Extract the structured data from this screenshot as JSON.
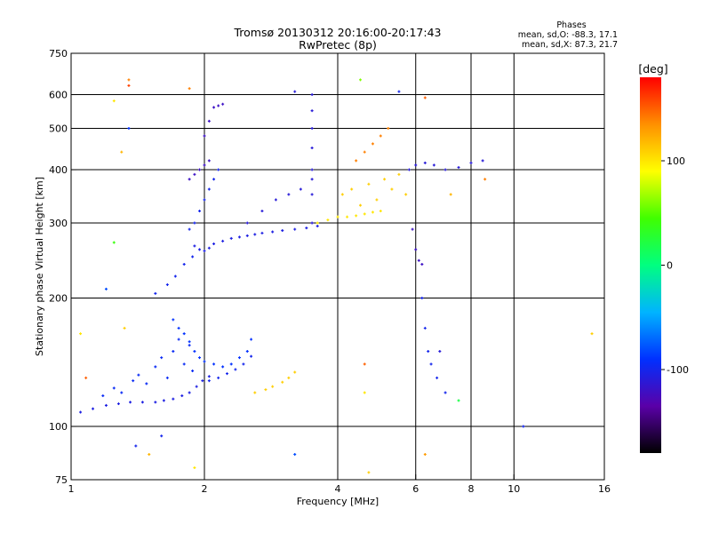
{
  "chart_data": {
    "type": "scatter",
    "title": "Tromsø 20130312 20:16:00-20:17:43",
    "subtitle": "RwPretec (8p)",
    "xlabel": "Frequency [MHz]",
    "ylabel": "Stationary phase Virtual Height [km]",
    "x_scale": "log",
    "y_scale": "log",
    "xlim": [
      1,
      16
    ],
    "ylim": [
      75,
      750
    ],
    "x_ticks": [
      1,
      2,
      4,
      6,
      8,
      10,
      16
    ],
    "y_ticks": [
      75,
      100,
      200,
      300,
      400,
      500,
      600,
      750
    ],
    "grid_x": [
      2,
      4,
      6,
      8,
      10
    ],
    "grid_y": [
      100,
      200,
      300,
      400,
      500,
      600
    ],
    "colorbar": {
      "label": "[deg]",
      "range": [
        -180,
        180
      ],
      "ticks": [
        100,
        0,
        -100
      ],
      "colors": [
        "#000000",
        "#5a00a8",
        "#0030ff",
        "#00b4ff",
        "#00ff80",
        "#40ff00",
        "#ffff00",
        "#ff9000",
        "#ff0000"
      ]
    },
    "phase_stats": {
      "header": "Phases",
      "line1": "mean, sd,O: -88.3, 17.1",
      "line2": "mean, sd,X:  87.3, 21.7"
    },
    "series": [
      {
        "x": [
          1.05,
          1.12,
          1.2,
          1.28,
          1.36,
          1.45,
          1.55,
          1.62,
          1.7,
          1.78,
          1.85,
          1.92,
          1.98,
          2.05
        ],
        "y": [
          108,
          110,
          112,
          113,
          114,
          114,
          114,
          115,
          116,
          118,
          120,
          124,
          128,
          131
        ],
        "phase": -105
      },
      {
        "x": [
          1.18,
          1.25,
          1.3,
          1.38,
          1.42,
          1.48,
          1.55,
          1.6,
          1.65,
          1.7,
          1.75,
          1.8,
          1.85,
          1.88
        ],
        "y": [
          118,
          123,
          120,
          128,
          132,
          126,
          138,
          145,
          130,
          150,
          160,
          140,
          155,
          135
        ],
        "phase": -95
      },
      {
        "x": [
          1.7,
          1.75,
          1.8,
          1.85,
          1.9,
          1.95,
          2.0,
          2.1,
          2.2,
          2.3,
          2.4,
          2.5,
          2.55
        ],
        "y": [
          178,
          170,
          165,
          158,
          150,
          145,
          142,
          140,
          138,
          140,
          145,
          150,
          160
        ],
        "phase": -90
      },
      {
        "x": [
          2.05,
          2.15,
          2.25,
          2.35,
          2.45,
          2.55
        ],
        "y": [
          128,
          130,
          133,
          136,
          140,
          146
        ],
        "phase": -100
      },
      {
        "x": [
          2.6,
          2.75,
          2.85,
          3.0,
          3.1,
          3.2
        ],
        "y": [
          120,
          122,
          124,
          127,
          130,
          134
        ],
        "phase": 110
      },
      {
        "x": [
          1.55,
          1.65,
          1.72,
          1.8,
          1.88
        ],
        "y": [
          205,
          215,
          225,
          240,
          250
        ],
        "phase": -100
      },
      {
        "x": [
          1.9,
          1.95,
          2.0,
          2.05,
          2.1,
          2.2,
          2.3,
          2.4,
          2.5,
          2.6,
          2.7,
          2.85,
          3.0,
          3.2,
          3.4,
          3.6
        ],
        "y": [
          265,
          260,
          258,
          262,
          268,
          272,
          276,
          278,
          280,
          282,
          284,
          286,
          288,
          290,
          292,
          295
        ],
        "phase": -105
      },
      {
        "x": [
          1.85,
          1.9,
          1.95,
          2.0,
          2.05,
          2.1,
          2.15
        ],
        "y": [
          290,
          300,
          320,
          340,
          360,
          380,
          400
        ],
        "phase": -100
      },
      {
        "x": [
          1.85,
          1.9,
          1.95,
          2.0,
          2.05
        ],
        "y": [
          380,
          390,
          400,
          410,
          420
        ],
        "phase": -120
      },
      {
        "x": [
          2.0,
          2.05,
          2.1,
          2.15,
          2.2
        ],
        "y": [
          480,
          520,
          560,
          565,
          570
        ],
        "phase": -120
      },
      {
        "x": [
          2.5,
          2.7,
          2.9,
          3.1,
          3.3,
          3.5
        ],
        "y": [
          300,
          320,
          340,
          350,
          360,
          380
        ],
        "phase": -110
      },
      {
        "x": [
          3.5,
          3.5,
          3.5,
          3.5,
          3.5,
          3.5,
          3.5
        ],
        "y": [
          300,
          350,
          400,
          450,
          500,
          550,
          600
        ],
        "phase": -110
      },
      {
        "x": [
          3.6,
          3.8,
          4.0,
          4.2,
          4.4,
          4.6,
          4.8,
          5.0
        ],
        "y": [
          300,
          305,
          310,
          310,
          312,
          315,
          318,
          320
        ],
        "phase": 100
      },
      {
        "x": [
          4.1,
          4.3,
          4.5,
          4.7,
          4.9,
          5.1,
          5.3,
          5.5,
          5.7
        ],
        "y": [
          350,
          360,
          330,
          370,
          340,
          380,
          360,
          390,
          350
        ],
        "phase": 110
      },
      {
        "x": [
          4.4,
          4.6,
          4.8,
          5.0,
          5.2
        ],
        "y": [
          420,
          440,
          460,
          480,
          500
        ],
        "phase": 140
      },
      {
        "x": [
          5.8,
          6.0,
          6.3,
          6.6,
          7.0,
          7.5,
          8.0,
          8.5
        ],
        "y": [
          400,
          410,
          415,
          410,
          400,
          405,
          415,
          420
        ],
        "phase": -110
      },
      {
        "x": [
          5.9,
          6.0,
          6.1,
          6.2
        ],
        "y": [
          290,
          260,
          245,
          240
        ],
        "phase": -120
      },
      {
        "x": [
          6.2,
          6.3,
          6.4,
          6.5,
          6.7,
          7.0
        ],
        "y": [
          200,
          170,
          150,
          140,
          130,
          120
        ],
        "phase": -100
      }
    ],
    "scattered_points": [
      {
        "x": 1.35,
        "y": 500,
        "phase": -90
      },
      {
        "x": 1.35,
        "y": 630,
        "phase": 160
      },
      {
        "x": 1.35,
        "y": 650,
        "phase": 140
      },
      {
        "x": 1.25,
        "y": 580,
        "phase": 100
      },
      {
        "x": 1.3,
        "y": 440,
        "phase": 120
      },
      {
        "x": 1.85,
        "y": 620,
        "phase": 140
      },
      {
        "x": 3.2,
        "y": 610,
        "phase": -110
      },
      {
        "x": 4.5,
        "y": 650,
        "phase": 60
      },
      {
        "x": 5.5,
        "y": 610,
        "phase": -100
      },
      {
        "x": 6.3,
        "y": 590,
        "phase": 150
      },
      {
        "x": 1.2,
        "y": 210,
        "phase": -80
      },
      {
        "x": 1.25,
        "y": 270,
        "phase": 40
      },
      {
        "x": 1.32,
        "y": 170,
        "phase": 110
      },
      {
        "x": 1.05,
        "y": 165,
        "phase": 100
      },
      {
        "x": 1.08,
        "y": 130,
        "phase": 150
      },
      {
        "x": 1.4,
        "y": 90,
        "phase": -100
      },
      {
        "x": 1.5,
        "y": 86,
        "phase": 120
      },
      {
        "x": 1.9,
        "y": 80,
        "phase": 100
      },
      {
        "x": 1.6,
        "y": 95,
        "phase": -100
      },
      {
        "x": 3.2,
        "y": 86,
        "phase": -80
      },
      {
        "x": 4.7,
        "y": 78,
        "phase": 110
      },
      {
        "x": 6.3,
        "y": 86,
        "phase": 130
      },
      {
        "x": 4.6,
        "y": 140,
        "phase": 150
      },
      {
        "x": 4.6,
        "y": 120,
        "phase": 100
      },
      {
        "x": 6.8,
        "y": 150,
        "phase": -110
      },
      {
        "x": 7.5,
        "y": 115,
        "phase": 20
      },
      {
        "x": 10.5,
        "y": 100,
        "phase": -100
      },
      {
        "x": 15.0,
        "y": 165,
        "phase": 110
      },
      {
        "x": 8.6,
        "y": 380,
        "phase": 140
      },
      {
        "x": 7.2,
        "y": 350,
        "phase": 120
      }
    ]
  }
}
